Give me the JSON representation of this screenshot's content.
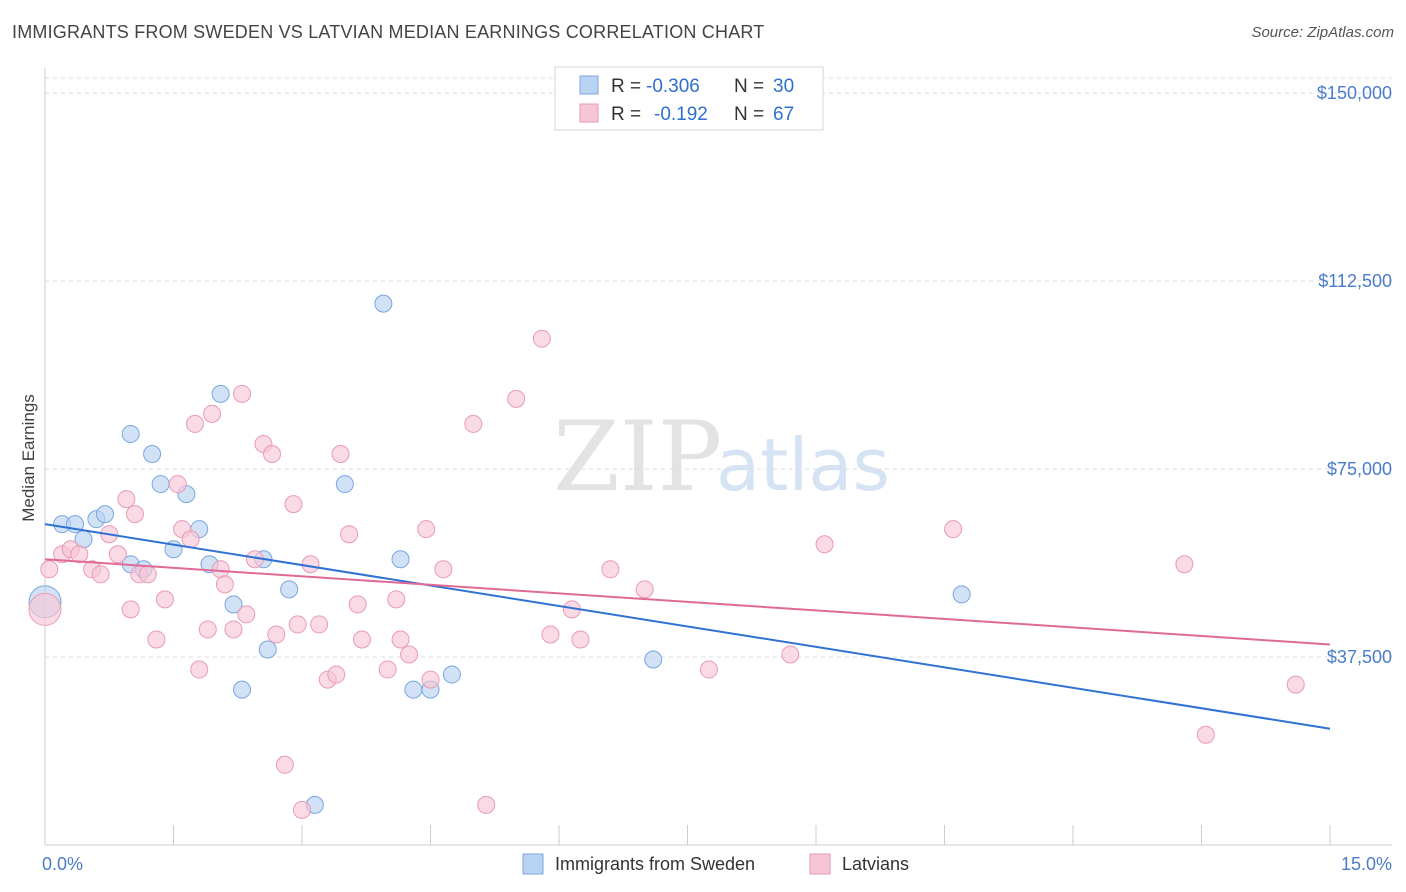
{
  "title": "IMMIGRANTS FROM SWEDEN VS LATVIAN MEDIAN EARNINGS CORRELATION CHART",
  "source": "Source: ZipAtlas.com",
  "watermark": {
    "zip": "ZIP",
    "atlas": "atlas"
  },
  "colors": {
    "blue_fill": "#b9d3f3",
    "blue_stroke": "#7aa6df",
    "blue_line": "#2f72d4",
    "pink_fill": "#f7c6d6",
    "pink_stroke": "#e99ab6",
    "pink_line": "#e06a95",
    "grid": "#dddddd"
  },
  "chart_data": {
    "type": "scatter",
    "xlabel": "",
    "ylabel": "Median Earnings",
    "xlim": [
      0,
      15
    ],
    "ylim": [
      0,
      155000
    ],
    "x_tick_labels": [
      {
        "value": 0,
        "label": "0.0%"
      },
      {
        "value": 15,
        "label": "15.0%"
      }
    ],
    "y_ticks": [
      37500,
      75000,
      112500,
      150000
    ],
    "y_tick_labels": [
      "$37,500",
      "$75,000",
      "$112,500",
      "$150,000"
    ],
    "grid": "horizontal dashed",
    "legend": {
      "placement": "top-center",
      "rows": [
        {
          "r_label": "R =",
          "r_value": "-0.306",
          "n_label": "N =",
          "n_value": "30"
        },
        {
          "r_label": "R =",
          "r_value": "-0.192",
          "n_label": "N =",
          "n_value": "67"
        }
      ]
    },
    "bottom_legend": [
      "Immigrants from Sweden",
      "Latvians"
    ],
    "series": [
      {
        "name": "Immigrants from Sweden",
        "trend": {
          "x": [
            0,
            15
          ],
          "y": [
            64000,
            23200
          ]
        },
        "points": [
          [
            0.0,
            48500
          ],
          [
            0.2,
            64000
          ],
          [
            0.35,
            64000
          ],
          [
            0.45,
            61000
          ],
          [
            0.6,
            65000
          ],
          [
            0.7,
            66000
          ],
          [
            1.0,
            82000
          ],
          [
            1.0,
            56000
          ],
          [
            1.15,
            55000
          ],
          [
            1.25,
            78000
          ],
          [
            1.35,
            72000
          ],
          [
            1.5,
            59000
          ],
          [
            1.65,
            70000
          ],
          [
            1.8,
            63000
          ],
          [
            1.92,
            56000
          ],
          [
            2.05,
            90000
          ],
          [
            2.2,
            48000
          ],
          [
            2.3,
            31000
          ],
          [
            2.55,
            57000
          ],
          [
            2.6,
            39000
          ],
          [
            2.85,
            51000
          ],
          [
            3.15,
            8000
          ],
          [
            3.5,
            72000
          ],
          [
            3.95,
            108000
          ],
          [
            4.15,
            57000
          ],
          [
            4.3,
            31000
          ],
          [
            4.5,
            31000
          ],
          [
            4.75,
            34000
          ],
          [
            7.1,
            37000
          ],
          [
            10.7,
            50000
          ]
        ]
      },
      {
        "name": "Latvians",
        "trend": {
          "x": [
            0,
            15
          ],
          "y": [
            57000,
            40000
          ]
        },
        "points": [
          [
            0.0,
            47000
          ],
          [
            0.05,
            55000
          ],
          [
            0.2,
            58000
          ],
          [
            0.3,
            59000
          ],
          [
            0.4,
            58000
          ],
          [
            0.55,
            55000
          ],
          [
            0.65,
            54000
          ],
          [
            0.75,
            62000
          ],
          [
            0.85,
            58000
          ],
          [
            0.95,
            69000
          ],
          [
            1.0,
            47000
          ],
          [
            1.05,
            66000
          ],
          [
            1.1,
            54000
          ],
          [
            1.2,
            54000
          ],
          [
            1.3,
            41000
          ],
          [
            1.4,
            49000
          ],
          [
            1.55,
            72000
          ],
          [
            1.6,
            63000
          ],
          [
            1.7,
            61000
          ],
          [
            1.75,
            84000
          ],
          [
            1.8,
            35000
          ],
          [
            1.9,
            43000
          ],
          [
            1.95,
            86000
          ],
          [
            2.05,
            55000
          ],
          [
            2.1,
            52000
          ],
          [
            2.2,
            43000
          ],
          [
            2.3,
            90000
          ],
          [
            2.35,
            46000
          ],
          [
            2.45,
            57000
          ],
          [
            2.55,
            80000
          ],
          [
            2.65,
            78000
          ],
          [
            2.7,
            42000
          ],
          [
            2.8,
            16000
          ],
          [
            2.9,
            68000
          ],
          [
            2.95,
            44000
          ],
          [
            3.0,
            7000
          ],
          [
            3.1,
            56000
          ],
          [
            3.2,
            44000
          ],
          [
            3.3,
            33000
          ],
          [
            3.4,
            34000
          ],
          [
            3.45,
            78000
          ],
          [
            3.55,
            62000
          ],
          [
            3.65,
            48000
          ],
          [
            3.7,
            41000
          ],
          [
            4.0,
            35000
          ],
          [
            4.1,
            49000
          ],
          [
            4.15,
            41000
          ],
          [
            4.25,
            38000
          ],
          [
            4.45,
            63000
          ],
          [
            4.5,
            33000
          ],
          [
            4.65,
            55000
          ],
          [
            5.0,
            84000
          ],
          [
            5.15,
            8000
          ],
          [
            5.5,
            89000
          ],
          [
            5.8,
            101000
          ],
          [
            5.9,
            42000
          ],
          [
            6.15,
            47000
          ],
          [
            6.25,
            41000
          ],
          [
            6.6,
            55000
          ],
          [
            7.0,
            51000
          ],
          [
            7.75,
            35000
          ],
          [
            8.7,
            38000
          ],
          [
            9.1,
            60000
          ],
          [
            10.6,
            63000
          ],
          [
            13.3,
            56000
          ],
          [
            13.55,
            22000
          ],
          [
            14.6,
            32000
          ]
        ]
      }
    ]
  }
}
